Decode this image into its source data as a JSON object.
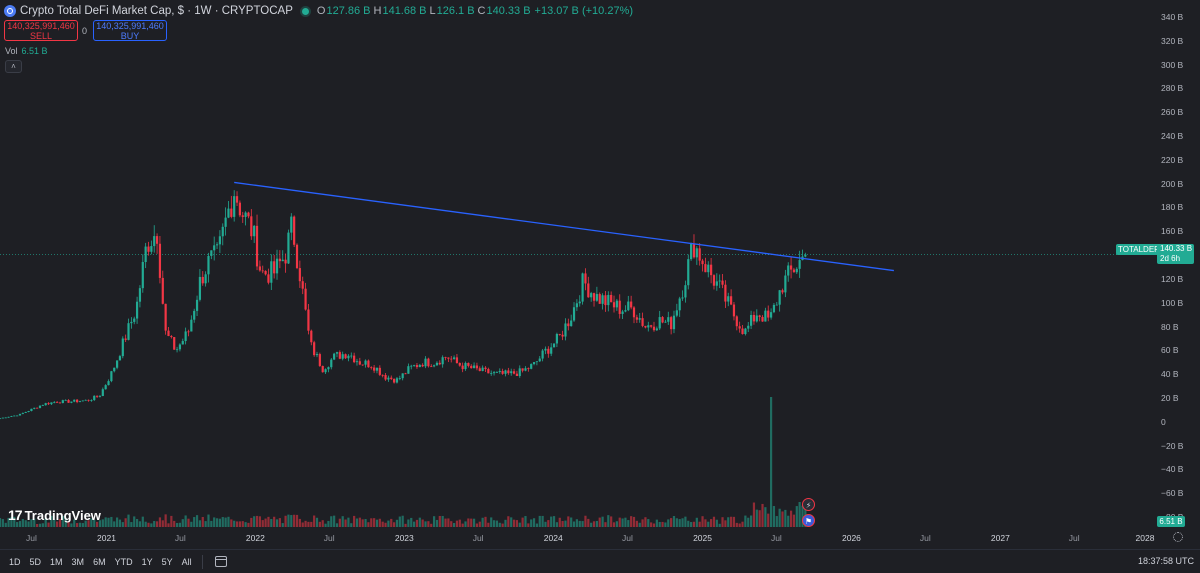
{
  "header": {
    "title": "Crypto Total DeFi Market Cap, $ · 1W · CRYPTOCAP",
    "ohlc": [
      {
        "label": "O",
        "value": "127.86 B"
      },
      {
        "label": "H",
        "value": "141.68 B"
      },
      {
        "label": "L",
        "value": "126.1 B"
      },
      {
        "label": "C",
        "value": "140.33 B"
      },
      {
        "label": "",
        "value": "+13.07 B (+10.27%)"
      }
    ]
  },
  "trade": {
    "sell_price": "140,325,991,460",
    "sell_label": "SELL",
    "spread": "0",
    "buy_price": "140,325,991,460",
    "buy_label": "BUY"
  },
  "volume_legend": {
    "label": "Vol",
    "value": "6.51 B"
  },
  "collapse_icon": "chevron-up-icon",
  "price_tag": {
    "symbol": "TOTALDEFI",
    "price": "140.33 B",
    "countdown": "2d 6h"
  },
  "volume_tag": "6.51 B",
  "logo": {
    "mark": "17",
    "text": "TradingView"
  },
  "y_axis": [
    "340 B",
    "320 B",
    "300 B",
    "280 B",
    "260 B",
    "240 B",
    "220 B",
    "200 B",
    "180 B",
    "160 B",
    "120 B",
    "100 B",
    "80 B",
    "60 B",
    "40 B",
    "20 B",
    "0",
    "−20 B",
    "−40 B",
    "−60 B",
    "−80 B"
  ],
  "x_axis": [
    "Jul",
    "2021",
    "Jul",
    "2022",
    "Jul",
    "2023",
    "Jul",
    "2024",
    "Jul",
    "2025",
    "Jul",
    "2026",
    "Jul",
    "2027",
    "Jul",
    "2028"
  ],
  "range_buttons": [
    "1D",
    "5D",
    "1M",
    "3M",
    "6M",
    "YTD",
    "1Y",
    "5Y",
    "All"
  ],
  "clock": "18:37:58 UTC",
  "colors": {
    "up": "#22ab94",
    "down": "#f23645",
    "trendline": "#2962ff",
    "background": "#1e1f24"
  },
  "icons": [
    "date-range-icon",
    "settings-gear-icon",
    "lightning-event-icon",
    "us-flag-event-icon"
  ],
  "chart_data": {
    "type": "candlestick",
    "title": "Crypto Total DeFi Market Cap, $ · 1W · CRYPTOCAP",
    "y_unit": "B",
    "ylim": [
      -90,
      350
    ],
    "xlim": [
      "2020-04-15",
      "2028-01-15"
    ],
    "grid": false,
    "price_path": [
      [
        "2020-04-15",
        3
      ],
      [
        "2020-06-01",
        6
      ],
      [
        "2020-08-01",
        15
      ],
      [
        "2020-09-01",
        17
      ],
      [
        "2020-10-01",
        17
      ],
      [
        "2020-11-15",
        18
      ],
      [
        "2020-12-15",
        22
      ],
      [
        "2021-01-15",
        42
      ],
      [
        "2021-02-15",
        70
      ],
      [
        "2021-03-15",
        95
      ],
      [
        "2021-04-10",
        150
      ],
      [
        "2021-05-05",
        160
      ],
      [
        "2021-05-25",
        75
      ],
      [
        "2021-06-20",
        60
      ],
      [
        "2021-07-20",
        75
      ],
      [
        "2021-08-20",
        120
      ],
      [
        "2021-09-10",
        135
      ],
      [
        "2021-10-01",
        140
      ],
      [
        "2021-10-25",
        175
      ],
      [
        "2021-11-10",
        195
      ],
      [
        "2021-12-01",
        175
      ],
      [
        "2021-12-25",
        160
      ],
      [
        "2022-01-15",
        125
      ],
      [
        "2022-02-15",
        125
      ],
      [
        "2022-03-15",
        140
      ],
      [
        "2022-04-01",
        165
      ],
      [
        "2022-04-20",
        125
      ],
      [
        "2022-05-15",
        65
      ],
      [
        "2022-06-15",
        45
      ],
      [
        "2022-07-15",
        55
      ],
      [
        "2022-08-15",
        58
      ],
      [
        "2022-09-15",
        50
      ],
      [
        "2022-10-15",
        48
      ],
      [
        "2022-11-15",
        38
      ],
      [
        "2022-12-15",
        35
      ],
      [
        "2023-01-15",
        45
      ],
      [
        "2023-02-15",
        50
      ],
      [
        "2023-03-15",
        50
      ],
      [
        "2023-04-15",
        55
      ],
      [
        "2023-05-15",
        48
      ],
      [
        "2023-06-15",
        45
      ],
      [
        "2023-07-15",
        42
      ],
      [
        "2023-08-15",
        40
      ],
      [
        "2023-09-15",
        40
      ],
      [
        "2023-10-15",
        42
      ],
      [
        "2023-11-15",
        48
      ],
      [
        "2023-12-15",
        60
      ],
      [
        "2024-01-15",
        70
      ],
      [
        "2024-02-15",
        90
      ],
      [
        "2024-03-15",
        118
      ],
      [
        "2024-04-15",
        105
      ],
      [
        "2024-05-15",
        100
      ],
      [
        "2024-06-15",
        95
      ],
      [
        "2024-07-15",
        95
      ],
      [
        "2024-08-15",
        80
      ],
      [
        "2024-09-15",
        85
      ],
      [
        "2024-10-15",
        82
      ],
      [
        "2024-11-15",
        115
      ],
      [
        "2024-12-10",
        150
      ],
      [
        "2025-01-10",
        130
      ],
      [
        "2025-02-15",
        110
      ],
      [
        "2025-03-15",
        92
      ],
      [
        "2025-04-15",
        75
      ],
      [
        "2025-05-15",
        92
      ],
      [
        "2025-06-15",
        85
      ],
      [
        "2025-07-15",
        115
      ],
      [
        "2025-08-15",
        130
      ],
      [
        "2025-09-10",
        140
      ]
    ],
    "volume_spike": {
      "date": "2025-06-20",
      "value_label": "very high"
    },
    "trendline": {
      "start": [
        "2021-11-10",
        201
      ],
      "end": [
        "2026-04-15",
        127
      ]
    },
    "last_price": 140.33,
    "last_volume": "6.51 B"
  }
}
